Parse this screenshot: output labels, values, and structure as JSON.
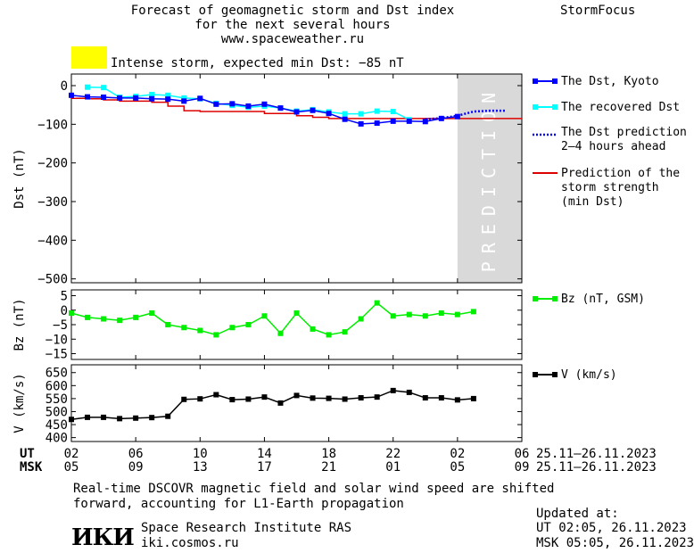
{
  "header": {
    "title_line1": "Forecast of geomagnetic storm and Dst index",
    "title_line2": "for the next several hours",
    "title_line3": "www.spaceweather.ru",
    "brand": "StormFocus",
    "alert_text": "Intense storm, expected min Dst: −85 nT",
    "alert_color": "#ffff00"
  },
  "colors": {
    "dst_kyoto": "#0000ff",
    "dst_recovered": "#00ffff",
    "prediction_line": "#dd0000",
    "bz": "#00ee00",
    "v": "#000000",
    "prediction_band": "#d9d9d9"
  },
  "prediction_band_label": "PREDICTION",
  "legend": {
    "dst_kyoto": "The Dst, Kyoto",
    "dst_recovered": "The recovered Dst",
    "dst_prediction_line1": "The Dst prediction",
    "dst_prediction_line2": "2–4 hours ahead",
    "storm_line1": "Prediction of the",
    "storm_line2": "storm strength",
    "storm_line3": "(min Dst)",
    "bz": "Bz (nT, GSM)",
    "v": "V (km/s)"
  },
  "time_axis": {
    "ut_label": "UT",
    "msk_label": "MSK",
    "ut_ticks": [
      "02",
      "06",
      "10",
      "14",
      "18",
      "22",
      "02",
      "06"
    ],
    "msk_ticks": [
      "05",
      "09",
      "13",
      "17",
      "21",
      "01",
      "05",
      "09"
    ],
    "date_range_ut": "25.11–26.11.2023",
    "date_range_msk": "25.11–26.11.2023"
  },
  "chart_data": [
    {
      "type": "line",
      "ylabel": "Dst (nT)",
      "ylim": [
        -510,
        30
      ],
      "y_ticks": [
        0,
        -100,
        -200,
        -300,
        -400,
        -500
      ],
      "x_range_hours_ut": [
        2,
        30
      ],
      "x_tick_hours": [
        2,
        6,
        10,
        14,
        18,
        22,
        26,
        30
      ],
      "prediction_from_hour": 26,
      "series": [
        {
          "name": "The Dst, Kyoto",
          "x": [
            2,
            3,
            4,
            5,
            6,
            7,
            8,
            9,
            10,
            11,
            12,
            13,
            14,
            15,
            16,
            17,
            18,
            19,
            20,
            21,
            22,
            23,
            24,
            25,
            26
          ],
          "values": [
            -25,
            -29,
            -30,
            -32,
            -32,
            -34,
            -35,
            -40,
            -33,
            -48,
            -47,
            -53,
            -48,
            -58,
            -68,
            -64,
            -72,
            -87,
            -99,
            -97,
            -92,
            -92,
            -93,
            -85,
            -80
          ]
        },
        {
          "name": "The recovered Dst",
          "x": [
            3,
            4,
            5,
            6,
            7,
            8,
            9,
            10,
            11,
            12,
            13,
            14,
            15,
            16,
            17,
            18,
            19,
            20,
            21,
            22,
            23
          ],
          "values": [
            -4,
            -5,
            -30,
            -28,
            -23,
            -25,
            -32,
            -34,
            -46,
            -51,
            -56,
            -53,
            -58,
            -66,
            -62,
            -68,
            -73,
            -73,
            -66,
            -67,
            -88
          ]
        },
        {
          "name": "The Dst prediction 2–4 hours ahead",
          "style": "dotted",
          "x": [
            24,
            25,
            26,
            27,
            28,
            29
          ],
          "values": [
            -87,
            -84,
            -78,
            -67,
            -65,
            -65
          ]
        },
        {
          "name": "Prediction of the storm strength (min Dst)",
          "style": "step",
          "x": [
            2,
            3,
            4,
            5,
            6,
            7,
            8,
            9,
            10,
            11,
            12,
            13,
            14,
            15,
            16,
            17,
            18,
            19,
            20,
            21,
            22,
            23,
            24,
            25,
            26,
            27,
            28,
            29,
            30
          ],
          "values": [
            -33,
            -34,
            -37,
            -40,
            -40,
            -43,
            -53,
            -65,
            -67,
            -67,
            -67,
            -67,
            -72,
            -72,
            -78,
            -82,
            -85,
            -85,
            -85,
            -85,
            -85,
            -85,
            -85,
            -85,
            -85,
            -85,
            -85,
            -85,
            -85
          ]
        }
      ]
    },
    {
      "type": "line",
      "ylabel": "Bz (nT)",
      "ylim": [
        -17,
        7
      ],
      "y_ticks": [
        5,
        0,
        -5,
        -10,
        -15
      ],
      "series": [
        {
          "name": "Bz (nT, GSM)",
          "x": [
            2,
            3,
            4,
            5,
            6,
            7,
            8,
            9,
            10,
            11,
            12,
            13,
            14,
            15,
            16,
            17,
            18,
            19,
            20,
            21,
            22,
            23,
            24,
            25,
            26,
            27
          ],
          "values": [
            -1,
            -2.5,
            -3,
            -3.5,
            -2.5,
            -1,
            -5,
            -6,
            -7,
            -8.5,
            -6,
            -5,
            -2,
            -8,
            -1,
            -6.5,
            -8.5,
            -7.5,
            -3,
            2.5,
            -2,
            -1.5,
            -2,
            -1,
            -1.5,
            -0.5
          ]
        }
      ]
    },
    {
      "type": "line",
      "ylabel": "V (km/s)",
      "ylim": [
        385,
        680
      ],
      "y_ticks": [
        650,
        600,
        550,
        500,
        450,
        400
      ],
      "series": [
        {
          "name": "V (km/s)",
          "x": [
            2,
            3,
            4,
            5,
            6,
            7,
            8,
            9,
            10,
            11,
            12,
            13,
            14,
            15,
            16,
            17,
            18,
            19,
            20,
            21,
            22,
            23,
            24,
            25,
            26,
            27
          ],
          "values": [
            470,
            478,
            478,
            473,
            475,
            477,
            482,
            547,
            549,
            565,
            546,
            548,
            556,
            533,
            562,
            552,
            551,
            548,
            553,
            556,
            581,
            574,
            553,
            553,
            545,
            550
          ]
        }
      ]
    }
  ],
  "footer": {
    "note_line1": "Real-time DSCOVR magnetic field and solar wind speed are shifted",
    "note_line2": "forward, accounting for L1-Earth propagation",
    "logo_text": "ИКИ",
    "institute": "Space Research Institute RAS",
    "site": "iki.cosmos.ru",
    "updated_label": "Updated at:",
    "updated_ut": "UT  02:05, 26.11.2023",
    "updated_msk": "MSK 05:05, 26.11.2023"
  }
}
